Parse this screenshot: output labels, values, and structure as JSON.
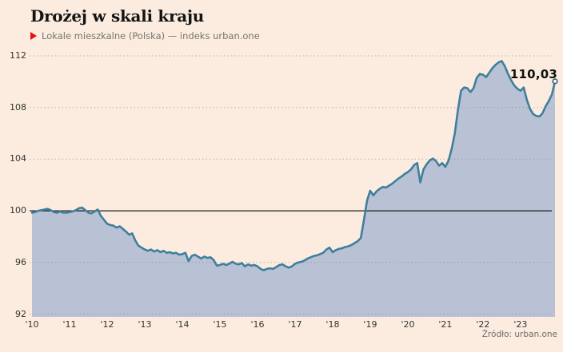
{
  "page": {
    "background": "#fbecdf"
  },
  "header": {
    "title": "Drożej w skali kraju",
    "legend": {
      "marker": "triangle-right-icon",
      "marker_color": "#e3120b",
      "label": "Lokale mieszkalne (Polska) — indeks urban.one"
    }
  },
  "annotation": {
    "last_value_label": "110,03"
  },
  "source": {
    "label": "Źródło: urban.one"
  },
  "chart_data": {
    "type": "area",
    "title": "Drożej w skali kraju",
    "series_name": "Lokale mieszkalne (Polska) — indeks urban.one",
    "x_unit": "month",
    "x_start": "2010-01",
    "x_end": "2023-12",
    "ylim": [
      92,
      112
    ],
    "yticks": [
      112,
      108,
      104,
      100,
      96,
      92
    ],
    "baseline": 100,
    "xtick_labels": [
      "'10",
      "'11",
      "'12",
      "'13",
      "'14",
      "'15",
      "'16",
      "'17",
      "'18",
      "'19",
      "'20",
      "'21",
      "'22",
      "'23"
    ],
    "grid": "dashed-horizontal",
    "legend_position": "top-left",
    "colors": {
      "line": "#3f7f9c",
      "area": "#b9c2d5",
      "baseline": "#1c1c1c",
      "grid": "#8d7f71",
      "end_dot_fill": "#ffffff",
      "end_dot_stroke": "#2c6076"
    },
    "last_value": 110.03,
    "values": [
      99.85,
      99.9,
      100.0,
      100.05,
      100.1,
      100.15,
      100.05,
      99.9,
      99.85,
      99.95,
      99.85,
      99.85,
      99.9,
      99.95,
      100.05,
      100.2,
      100.25,
      100.05,
      99.85,
      99.8,
      99.95,
      100.1,
      99.6,
      99.3,
      99.0,
      98.9,
      98.85,
      98.7,
      98.8,
      98.6,
      98.4,
      98.15,
      98.25,
      97.7,
      97.3,
      97.15,
      97.0,
      96.9,
      97.0,
      96.85,
      96.95,
      96.8,
      96.9,
      96.75,
      96.8,
      96.7,
      96.75,
      96.6,
      96.65,
      96.75,
      96.1,
      96.5,
      96.6,
      96.45,
      96.3,
      96.45,
      96.35,
      96.4,
      96.2,
      95.75,
      95.8,
      95.9,
      95.8,
      95.9,
      96.05,
      95.9,
      95.85,
      95.95,
      95.7,
      95.85,
      95.75,
      95.8,
      95.7,
      95.5,
      95.4,
      95.5,
      95.55,
      95.5,
      95.65,
      95.8,
      95.85,
      95.7,
      95.6,
      95.7,
      95.9,
      96.0,
      96.05,
      96.15,
      96.3,
      96.4,
      96.5,
      96.55,
      96.65,
      96.75,
      97.0,
      97.15,
      96.8,
      96.95,
      97.05,
      97.1,
      97.2,
      97.25,
      97.35,
      97.5,
      97.65,
      97.9,
      99.3,
      100.8,
      101.55,
      101.2,
      101.5,
      101.7,
      101.85,
      101.8,
      101.95,
      102.1,
      102.3,
      102.5,
      102.65,
      102.85,
      103.0,
      103.2,
      103.55,
      103.7,
      102.2,
      103.2,
      103.6,
      103.9,
      104.05,
      103.85,
      103.5,
      103.7,
      103.4,
      103.9,
      104.8,
      106.0,
      107.8,
      109.3,
      109.55,
      109.5,
      109.2,
      109.5,
      110.3,
      110.6,
      110.55,
      110.35,
      110.7,
      111.05,
      111.3,
      111.5,
      111.6,
      111.2,
      110.6,
      110.1,
      109.7,
      109.45,
      109.3,
      109.55,
      108.6,
      107.9,
      107.5,
      107.35,
      107.3,
      107.55,
      108.1,
      108.5,
      109.0,
      110.03
    ]
  }
}
